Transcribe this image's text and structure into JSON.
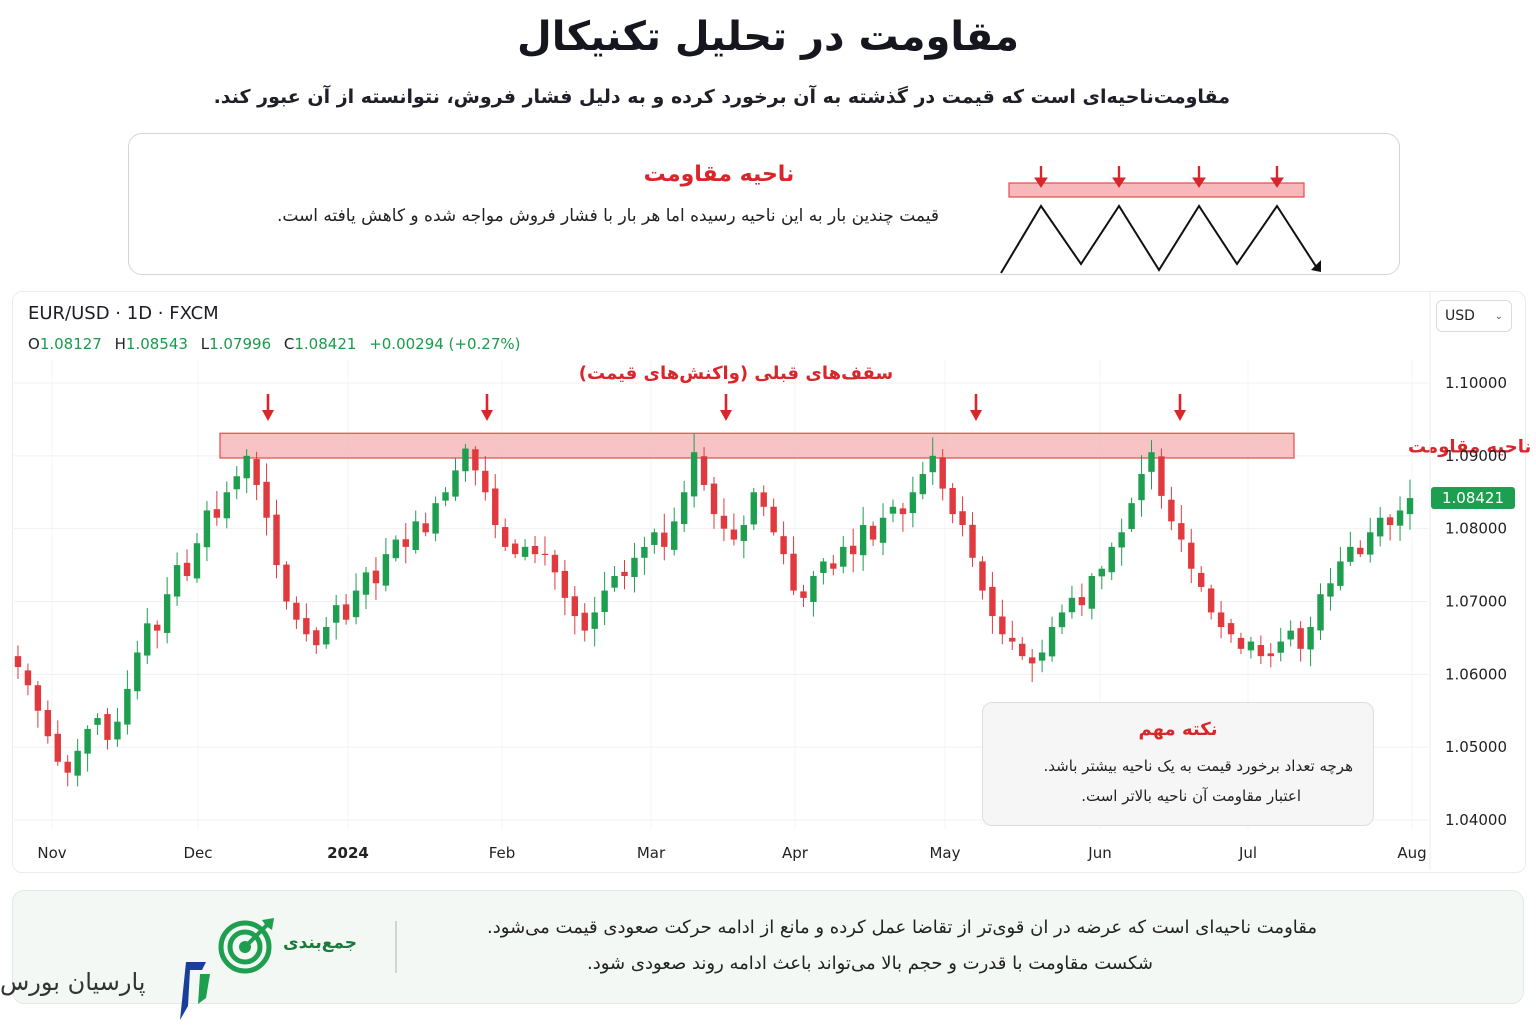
{
  "header": {
    "title": "مقاومت در تحلیل تکنیکال",
    "subtitle": "مقاومت‌ناحیه‌ای است که قیمت در گذشته به آن برخورد کرده و به دلیل فشار فروش، نتوانسته از آن عبور کند."
  },
  "concept": {
    "title": "ناحیه مقاومت",
    "description": "قیمت چندین بار به این ناحیه رسیده اما هر بار با فشار فروش مواجه شده و کاهش یافته است."
  },
  "chart_header": {
    "symbol": "EUR/USD · 1D · FXCM",
    "open_label": "O",
    "open": "1.08127",
    "high_label": "H",
    "high": "1.08543",
    "low_label": "L",
    "low": "1.07996",
    "close_label": "C",
    "close": "1.08421",
    "change": "+0.00294 (+0.27%)",
    "currency": "USD",
    "currency_chevron": "chevron-down-icon"
  },
  "annotations": {
    "peaks_label": "سقف‌های قبلی (واکنش‌های قیمت)",
    "zone_label": "ناحیه مقاومت",
    "last_price": "1.08421"
  },
  "note": {
    "title": "نکته مهم",
    "line1": "هرچه تعداد برخورد قیمت به یک ناحیه بیشتر باشد.",
    "line2": "اعتبار مقاومت آن ناحیه بالاتر است."
  },
  "summary": {
    "label": "جمع‌بندی",
    "line1": "مقاومت ناحیه‌ای است که عرضه در ان قوی‌تر از تقاضا عمل کرده و مانع از ادامه حرکت صعودی قیمت می‌شود.",
    "line2": "شکست مقاومت با قدرت و حجم بالا می‌تواند باعث ادامه روند صعودی شود."
  },
  "brand": {
    "name": "پارسیان بورس",
    "icon": "target-logo-icon"
  },
  "colors": {
    "up": "#1e9e4f",
    "down": "#e0393e",
    "zone_fill": "#f7b8bb",
    "zone_stroke": "#e44b4f",
    "accent_red": "#d9262b",
    "price_tag": "#1e9e4f"
  },
  "chart_data": {
    "type": "candlestick",
    "y_ticks": [
      "1.10000",
      "1.09000",
      "1.08000",
      "1.07000",
      "1.06000",
      "1.05000",
      "1.04000"
    ],
    "ylim": [
      1.04,
      1.1
    ],
    "x_ticks": [
      {
        "label": "Nov",
        "bold": false
      },
      {
        "label": "Dec",
        "bold": false
      },
      {
        "label": "2024",
        "bold": true
      },
      {
        "label": "Feb",
        "bold": false
      },
      {
        "label": "Mar",
        "bold": false
      },
      {
        "label": "Apr",
        "bold": false
      },
      {
        "label": "May",
        "bold": false
      },
      {
        "label": "Jun",
        "bold": false
      },
      {
        "label": "Jul",
        "bold": false
      },
      {
        "label": "Aug",
        "bold": false
      }
    ],
    "resistance_zone": [
      1.0897,
      1.0931
    ],
    "close_path": [
      1.061,
      1.0585,
      1.055,
      1.0515,
      1.048,
      1.0465,
      1.0495,
      1.0525,
      1.054,
      1.051,
      1.0535,
      1.058,
      1.063,
      1.067,
      1.066,
      1.071,
      1.075,
      1.0735,
      1.078,
      1.0825,
      1.0815,
      1.085,
      1.0872,
      1.09,
      1.086,
      1.0815,
      1.075,
      1.07,
      1.0675,
      1.0655,
      1.064,
      1.0665,
      1.0695,
      1.0675,
      1.0715,
      1.074,
      1.0725,
      1.0765,
      1.0785,
      1.0775,
      1.081,
      1.0795,
      1.0835,
      1.085,
      1.088,
      1.091,
      1.088,
      1.085,
      1.0805,
      1.0775,
      1.0765,
      1.0775,
      1.0765,
      1.0765,
      1.074,
      1.0705,
      1.068,
      1.066,
      1.0685,
      1.0715,
      1.0735,
      1.0735,
      1.076,
      1.0775,
      1.0795,
      1.0775,
      1.081,
      1.085,
      1.0905,
      1.086,
      1.082,
      1.08,
      1.0785,
      1.0805,
      1.085,
      1.083,
      1.0795,
      1.0765,
      1.0715,
      1.0705,
      1.0735,
      1.0755,
      1.0745,
      1.0775,
      1.0765,
      1.0805,
      1.0785,
      1.0815,
      1.083,
      1.082,
      1.085,
      1.0875,
      1.09,
      1.0855,
      1.082,
      1.0805,
      1.076,
      1.0715,
      1.068,
      1.0655,
      1.0645,
      1.0625,
      1.0615,
      1.063,
      1.0665,
      1.0685,
      1.0705,
      1.0695,
      1.0735,
      1.0745,
      1.0775,
      1.0795,
      1.0835,
      1.0875,
      1.0905,
      1.0845,
      1.081,
      1.0785,
      1.0745,
      1.072,
      1.0685,
      1.0665,
      1.0655,
      1.0635,
      1.0645,
      1.0625,
      1.0625,
      1.0645,
      1.066,
      1.0635,
      1.0665,
      1.071,
      1.0725,
      1.0755,
      1.0775,
      1.0765,
      1.0795,
      1.0815,
      1.0805,
      1.0825,
      1.0842
    ],
    "peaks": [
      "Dec",
      "Feb",
      "Mar",
      "May",
      "Jun"
    ]
  }
}
